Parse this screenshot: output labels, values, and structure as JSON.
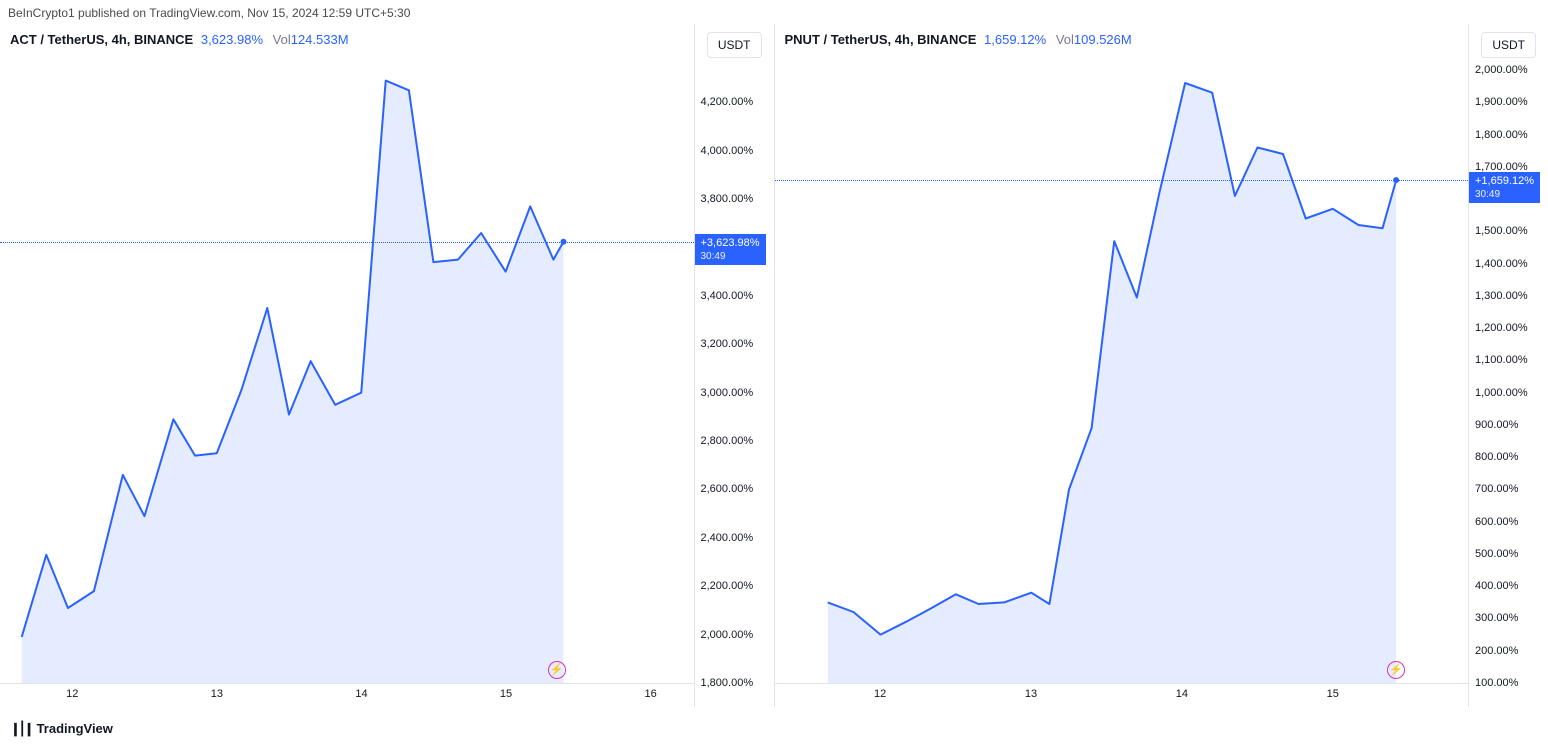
{
  "header": {
    "publisher_text": "BeInCrypto1 published on TradingView.com, Nov 15, 2024 12:59 UTC+5:30"
  },
  "footer": {
    "logo_text": "TradingView"
  },
  "colors": {
    "line": "#2962ff",
    "fill": "rgba(41,98,255,0.12)",
    "flag_bg": "#2962ff",
    "dotted": "#2962ff",
    "axis_text": "#131722",
    "border": "#e0e3eb",
    "bolt": "#d633b1"
  },
  "chart_left": {
    "type": "area",
    "symbol": "ACT / TetherUS, 4h, BINANCE",
    "percent_label": "3,623.98%",
    "vol_label": "Vol",
    "vol_value": "124.533M",
    "quote_badge": "USDT",
    "price_flag_main": "+3,623.98%",
    "price_flag_sub": "30:49",
    "y_axis": {
      "min": 1800,
      "max": 4400,
      "ticks": [
        {
          "v": 4200,
          "label": "4,200.00%"
        },
        {
          "v": 4000,
          "label": "4,000.00%"
        },
        {
          "v": 3800,
          "label": "3,800.00%"
        },
        {
          "v": 3400,
          "label": "3,400.00%"
        },
        {
          "v": 3200,
          "label": "3,200.00%"
        },
        {
          "v": 3000,
          "label": "3,000.00%"
        },
        {
          "v": 2800,
          "label": "2,800.00%"
        },
        {
          "v": 2600,
          "label": "2,600.00%"
        },
        {
          "v": 2400,
          "label": "2,400.00%"
        },
        {
          "v": 2200,
          "label": "2,200.00%"
        },
        {
          "v": 2000,
          "label": "2,000.00%"
        },
        {
          "v": 1800,
          "label": "1,800.00%"
        }
      ]
    },
    "x_axis": {
      "min": 11.5,
      "max": 16.3,
      "ticks": [
        {
          "v": 12,
          "label": "12"
        },
        {
          "v": 13,
          "label": "13"
        },
        {
          "v": 14,
          "label": "14"
        },
        {
          "v": 15,
          "label": "15"
        },
        {
          "v": 16,
          "label": "16"
        }
      ]
    },
    "current_value": 3623.98,
    "bolt_x": 15.35,
    "series": [
      {
        "x": 11.65,
        "y": 1990
      },
      {
        "x": 11.82,
        "y": 2330
      },
      {
        "x": 11.97,
        "y": 2110
      },
      {
        "x": 12.15,
        "y": 2180
      },
      {
        "x": 12.35,
        "y": 2660
      },
      {
        "x": 12.5,
        "y": 2490
      },
      {
        "x": 12.7,
        "y": 2890
      },
      {
        "x": 12.85,
        "y": 2740
      },
      {
        "x": 13.0,
        "y": 2750
      },
      {
        "x": 13.17,
        "y": 3010
      },
      {
        "x": 13.35,
        "y": 3350
      },
      {
        "x": 13.5,
        "y": 2910
      },
      {
        "x": 13.65,
        "y": 3130
      },
      {
        "x": 13.82,
        "y": 2950
      },
      {
        "x": 14.0,
        "y": 3000
      },
      {
        "x": 14.17,
        "y": 4290
      },
      {
        "x": 14.33,
        "y": 4250
      },
      {
        "x": 14.5,
        "y": 3540
      },
      {
        "x": 14.67,
        "y": 3550
      },
      {
        "x": 14.83,
        "y": 3660
      },
      {
        "x": 15.0,
        "y": 3500
      },
      {
        "x": 15.17,
        "y": 3770
      },
      {
        "x": 15.33,
        "y": 3550
      },
      {
        "x": 15.4,
        "y": 3623.98
      }
    ]
  },
  "chart_right": {
    "type": "area",
    "symbol": "PNUT / TetherUS, 4h, BINANCE",
    "percent_label": "1,659.12%",
    "vol_label": "Vol",
    "vol_value": "109.526M",
    "quote_badge": "USDT",
    "price_flag_main": "+1,659.12%",
    "price_flag_sub": "30:49",
    "y_axis": {
      "min": 100,
      "max": 2050,
      "ticks": [
        {
          "v": 2000,
          "label": "2,000.00%"
        },
        {
          "v": 1900,
          "label": "1,900.00%"
        },
        {
          "v": 1800,
          "label": "1,800.00%"
        },
        {
          "v": 1700,
          "label": "1,700.00%"
        },
        {
          "v": 1500,
          "label": "1,500.00%"
        },
        {
          "v": 1400,
          "label": "1,400.00%"
        },
        {
          "v": 1300,
          "label": "1,300.00%"
        },
        {
          "v": 1200,
          "label": "1,200.00%"
        },
        {
          "v": 1100,
          "label": "1,100.00%"
        },
        {
          "v": 1000,
          "label": "1,000.00%"
        },
        {
          "v": 900,
          "label": "900.00%"
        },
        {
          "v": 800,
          "label": "800.00%"
        },
        {
          "v": 700,
          "label": "700.00%"
        },
        {
          "v": 600,
          "label": "600.00%"
        },
        {
          "v": 500,
          "label": "500.00%"
        },
        {
          "v": 400,
          "label": "400.00%"
        },
        {
          "v": 300,
          "label": "300.00%"
        },
        {
          "v": 200,
          "label": "200.00%"
        },
        {
          "v": 100,
          "label": "100.00%"
        }
      ]
    },
    "x_axis": {
      "min": 11.3,
      "max": 15.9,
      "ticks": [
        {
          "v": 12,
          "label": "12"
        },
        {
          "v": 13,
          "label": "13"
        },
        {
          "v": 14,
          "label": "14"
        },
        {
          "v": 15,
          "label": "15"
        }
      ]
    },
    "current_value": 1659.12,
    "bolt_x": 15.42,
    "series": [
      {
        "x": 11.65,
        "y": 350
      },
      {
        "x": 11.82,
        "y": 320
      },
      {
        "x": 12.0,
        "y": 250
      },
      {
        "x": 12.17,
        "y": 290
      },
      {
        "x": 12.33,
        "y": 330
      },
      {
        "x": 12.5,
        "y": 375
      },
      {
        "x": 12.65,
        "y": 345
      },
      {
        "x": 12.82,
        "y": 350
      },
      {
        "x": 13.0,
        "y": 380
      },
      {
        "x": 13.12,
        "y": 345
      },
      {
        "x": 13.25,
        "y": 700
      },
      {
        "x": 13.4,
        "y": 890
      },
      {
        "x": 13.55,
        "y": 1470
      },
      {
        "x": 13.7,
        "y": 1295
      },
      {
        "x": 13.85,
        "y": 1620
      },
      {
        "x": 14.02,
        "y": 1960
      },
      {
        "x": 14.2,
        "y": 1930
      },
      {
        "x": 14.35,
        "y": 1610
      },
      {
        "x": 14.5,
        "y": 1760
      },
      {
        "x": 14.67,
        "y": 1740
      },
      {
        "x": 14.82,
        "y": 1540
      },
      {
        "x": 15.0,
        "y": 1570
      },
      {
        "x": 15.17,
        "y": 1520
      },
      {
        "x": 15.33,
        "y": 1510
      },
      {
        "x": 15.42,
        "y": 1659.12
      }
    ]
  }
}
